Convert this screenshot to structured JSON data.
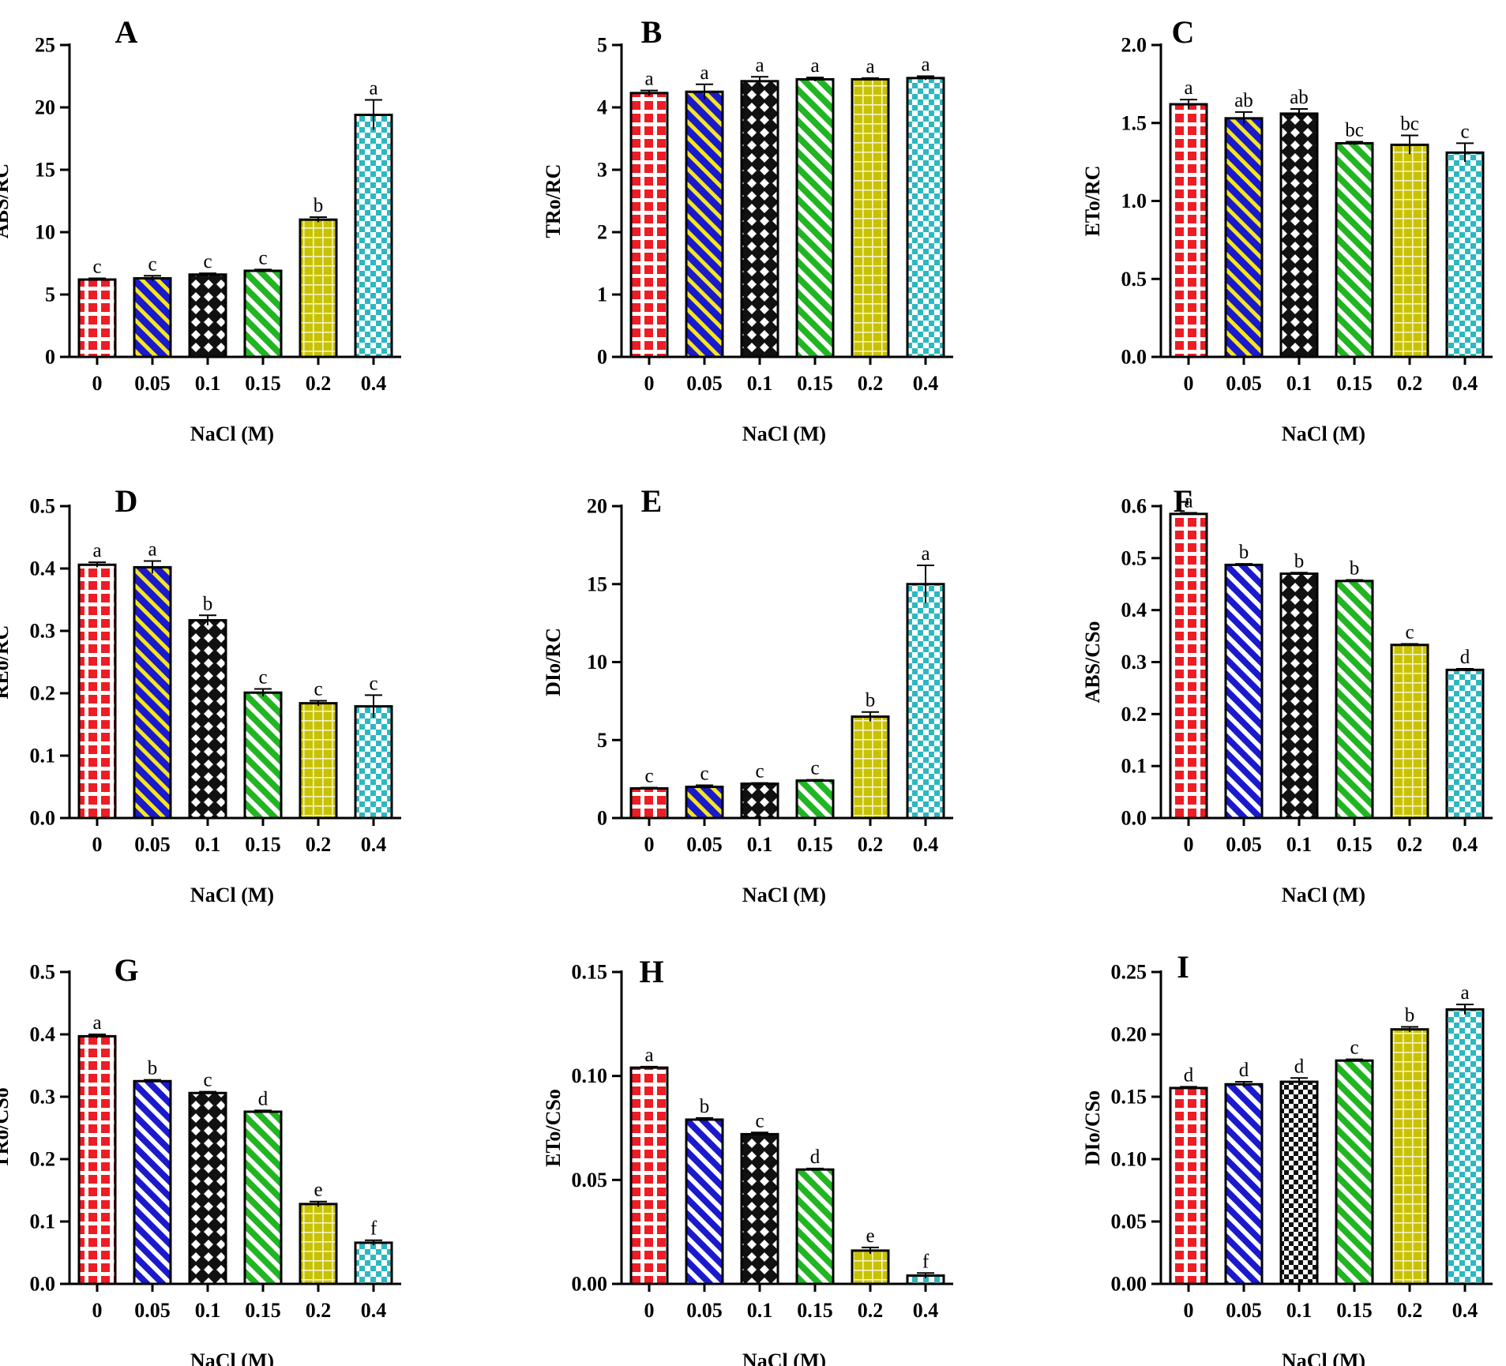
{
  "figure": {
    "categories": [
      "0",
      "0.05",
      "0.1",
      "0.15",
      "0.2",
      "0.4"
    ],
    "xlabel": "NaCl (M)",
    "colors": {
      "red": "#ee1c24",
      "blue": "#1a1acc",
      "yellow": "#f5e61e",
      "black": "#111111",
      "green": "#22b522",
      "olive": "#c9c200",
      "teal": "#2cb8c0",
      "white": "#ffffff"
    }
  },
  "chart_data": [
    {
      "panel": "A",
      "type": "bar",
      "categories": [
        "0",
        "0.05",
        "0.1",
        "0.15",
        "0.2",
        "0.4"
      ],
      "values": [
        6.2,
        6.3,
        6.6,
        6.9,
        11.0,
        19.4
      ],
      "errors": [
        0.1,
        0.2,
        0.1,
        0.1,
        0.2,
        1.2
      ],
      "letters": [
        "c",
        "c",
        "c",
        "c",
        "b",
        "a"
      ],
      "patterns": [
        "red-grid",
        "blue-yellow-stripe",
        "black-diamond",
        "green-stripe",
        "olive-grid",
        "teal-check"
      ],
      "ylabel": "ABS/RC",
      "xlabel": "NaCl (M)",
      "ylim": [
        0,
        25
      ],
      "ticks": [
        0,
        5,
        10,
        15,
        20,
        25
      ],
      "tick_labels": [
        "0",
        "5",
        "10",
        "15",
        "20",
        "25"
      ]
    },
    {
      "panel": "B",
      "type": "bar",
      "categories": [
        "0",
        "0.05",
        "0.1",
        "0.15",
        "0.2",
        "0.4"
      ],
      "values": [
        4.23,
        4.25,
        4.42,
        4.45,
        4.45,
        4.47
      ],
      "errors": [
        0.04,
        0.12,
        0.07,
        0.03,
        0.02,
        0.03
      ],
      "letters": [
        "a",
        "a",
        "a",
        "a",
        "a",
        "a"
      ],
      "patterns": [
        "red-grid",
        "blue-yellow-stripe",
        "black-diamond",
        "green-stripe",
        "olive-grid",
        "teal-check"
      ],
      "ylabel": "TRo/RC",
      "xlabel": "NaCl (M)",
      "ylim": [
        0,
        5
      ],
      "ticks": [
        0,
        1,
        2,
        3,
        4,
        5
      ],
      "tick_labels": [
        "0",
        "1",
        "2",
        "3",
        "4",
        "5"
      ]
    },
    {
      "panel": "C",
      "type": "bar",
      "categories": [
        "0",
        "0.05",
        "0.1",
        "0.15",
        "0.2",
        "0.4"
      ],
      "values": [
        1.62,
        1.53,
        1.56,
        1.37,
        1.36,
        1.31
      ],
      "errors": [
        0.03,
        0.04,
        0.03,
        0.01,
        0.06,
        0.06
      ],
      "letters": [
        "a",
        "ab",
        "ab",
        "bc",
        "bc",
        "c"
      ],
      "patterns": [
        "red-grid",
        "blue-yellow-stripe",
        "black-diamond",
        "green-stripe",
        "olive-grid",
        "teal-check"
      ],
      "ylabel": "ETo/RC",
      "xlabel": "NaCl (M)",
      "ylim": [
        0,
        2.0
      ],
      "ticks": [
        0,
        0.5,
        1.0,
        1.5,
        2.0
      ],
      "tick_labels": [
        "0.0",
        "0.5",
        "1.0",
        "1.5",
        "2.0"
      ]
    },
    {
      "panel": "D",
      "type": "bar",
      "categories": [
        "0",
        "0.05",
        "0.1",
        "0.15",
        "0.2",
        "0.4"
      ],
      "values": [
        0.406,
        0.402,
        0.317,
        0.201,
        0.184,
        0.179
      ],
      "errors": [
        0.004,
        0.01,
        0.008,
        0.006,
        0.004,
        0.018
      ],
      "letters": [
        "a",
        "a",
        "b",
        "c",
        "c",
        "c"
      ],
      "patterns": [
        "red-grid",
        "blue-yellow-stripe",
        "black-diamond",
        "green-stripe",
        "olive-grid",
        "teal-check"
      ],
      "ylabel": "REo/RC",
      "xlabel": "NaCl (M)",
      "ylim": [
        0,
        0.5
      ],
      "ticks": [
        0,
        0.1,
        0.2,
        0.3,
        0.4,
        0.5
      ],
      "tick_labels": [
        "0.0",
        "0.1",
        "0.2",
        "0.3",
        "0.4",
        "0.5"
      ]
    },
    {
      "panel": "E",
      "type": "bar",
      "categories": [
        "0",
        "0.05",
        "0.1",
        "0.15",
        "0.2",
        "0.4"
      ],
      "values": [
        1.9,
        2.0,
        2.2,
        2.4,
        6.5,
        15.0
      ],
      "errors": [
        0.05,
        0.1,
        0.05,
        0.05,
        0.3,
        1.2
      ],
      "letters": [
        "c",
        "c",
        "c",
        "c",
        "b",
        "a"
      ],
      "patterns": [
        "red-grid",
        "blue-yellow-stripe",
        "black-diamond",
        "green-stripe",
        "olive-grid",
        "teal-check"
      ],
      "ylabel": "DIo/RC",
      "xlabel": "NaCl (M)",
      "ylim": [
        0,
        20
      ],
      "ticks": [
        0,
        5,
        10,
        15,
        20
      ],
      "tick_labels": [
        "0",
        "5",
        "10",
        "15",
        "20"
      ]
    },
    {
      "panel": "F",
      "type": "bar",
      "categories": [
        "0",
        "0.05",
        "0.1",
        "0.15",
        "0.2",
        "0.4"
      ],
      "values": [
        0.585,
        0.487,
        0.47,
        0.456,
        0.333,
        0.285
      ],
      "errors": [
        0.002,
        0.002,
        0.002,
        0.002,
        0.002,
        0.002
      ],
      "letters": [
        "a",
        "b",
        "b",
        "b",
        "c",
        "d"
      ],
      "patterns": [
        "red-grid",
        "blue-stripe",
        "black-diamond",
        "green-stripe",
        "olive-grid",
        "teal-check"
      ],
      "ylabel": "ABS/CSo",
      "xlabel": "NaCl (M)",
      "ylim": [
        0,
        0.6
      ],
      "ticks": [
        0,
        0.1,
        0.2,
        0.3,
        0.4,
        0.5,
        0.6
      ],
      "tick_labels": [
        "0.0",
        "0.1",
        "0.2",
        "0.3",
        "0.4",
        "0.5",
        "0.6"
      ]
    },
    {
      "panel": "G",
      "type": "bar",
      "categories": [
        "0",
        "0.05",
        "0.1",
        "0.15",
        "0.2",
        "0.4"
      ],
      "values": [
        0.397,
        0.325,
        0.306,
        0.276,
        0.128,
        0.066
      ],
      "errors": [
        0.003,
        0.002,
        0.002,
        0.002,
        0.004,
        0.004
      ],
      "letters": [
        "a",
        "b",
        "c",
        "d",
        "e",
        "f"
      ],
      "patterns": [
        "red-grid",
        "blue-stripe",
        "black-diamond",
        "green-stripe",
        "olive-grid",
        "teal-check"
      ],
      "ylabel": "TRo/CSo",
      "xlabel": "NaCl (M)",
      "ylim": [
        0,
        0.5
      ],
      "ticks": [
        0,
        0.1,
        0.2,
        0.3,
        0.4,
        0.5
      ],
      "tick_labels": [
        "0.0",
        "0.1",
        "0.2",
        "0.3",
        "0.4",
        "0.5"
      ]
    },
    {
      "panel": "H",
      "type": "bar",
      "categories": [
        "0",
        "0.05",
        "0.1",
        "0.15",
        "0.2",
        "0.4"
      ],
      "values": [
        0.104,
        0.079,
        0.072,
        0.055,
        0.016,
        0.004
      ],
      "errors": [
        0.0005,
        0.0008,
        0.0008,
        0.0005,
        0.0015,
        0.0012
      ],
      "letters": [
        "a",
        "b",
        "c",
        "d",
        "e",
        "f"
      ],
      "patterns": [
        "red-grid",
        "blue-stripe",
        "black-diamond",
        "green-stripe",
        "olive-grid",
        "teal-check"
      ],
      "ylabel": "ETo/CSo",
      "xlabel": "NaCl (M)",
      "ylim": [
        0,
        0.15
      ],
      "ticks": [
        0,
        0.05,
        0.1,
        0.15
      ],
      "tick_labels": [
        "0.00",
        "0.05",
        "0.10",
        "0.15"
      ]
    },
    {
      "panel": "I",
      "type": "bar",
      "categories": [
        "0",
        "0.05",
        "0.1",
        "0.15",
        "0.2",
        "0.4"
      ],
      "values": [
        0.157,
        0.16,
        0.162,
        0.179,
        0.204,
        0.22
      ],
      "errors": [
        0.001,
        0.002,
        0.003,
        0.001,
        0.002,
        0.004
      ],
      "letters": [
        "d",
        "d",
        "d",
        "c",
        "b",
        "a"
      ],
      "patterns": [
        "red-grid",
        "blue-stripe",
        "black-check",
        "green-stripe",
        "olive-grid",
        "teal-check"
      ],
      "ylabel": "DIo/CSo",
      "xlabel": "NaCl (M)",
      "ylim": [
        0,
        0.25
      ],
      "ticks": [
        0,
        0.05,
        0.1,
        0.15,
        0.2,
        0.25
      ],
      "tick_labels": [
        "0.00",
        "0.05",
        "0.10",
        "0.15",
        "0.20",
        "0.25"
      ]
    }
  ]
}
